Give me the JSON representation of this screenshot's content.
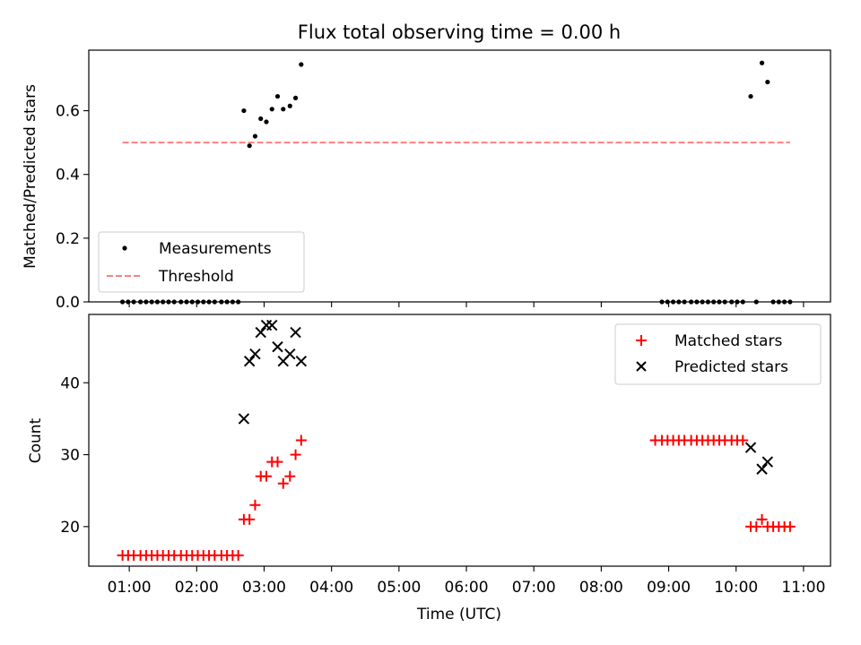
{
  "chart_data": [
    {
      "type": "scatter",
      "title": "Flux total observing time = 0.00 h",
      "ylabel": "Matched/Predicted stars",
      "xlabel": "",
      "xlim": [
        "00:24",
        "11:24"
      ],
      "ylim": [
        0,
        0.79
      ],
      "yticks": [
        "0.0",
        "0.2",
        "0.4",
        "0.6"
      ],
      "legend_position": "lower-left",
      "series": [
        {
          "name": "Measurements",
          "kind": "scatter",
          "marker": "dot",
          "color": "#000000",
          "points": [
            [
              "00:54",
              0
            ],
            [
              "00:59",
              0
            ],
            [
              "01:04",
              0
            ],
            [
              "01:10",
              0
            ],
            [
              "01:15",
              0
            ],
            [
              "01:20",
              0
            ],
            [
              "01:25",
              0
            ],
            [
              "01:30",
              0
            ],
            [
              "01:35",
              0
            ],
            [
              "01:40",
              0
            ],
            [
              "01:46",
              0
            ],
            [
              "01:51",
              0
            ],
            [
              "01:56",
              0
            ],
            [
              "02:01",
              0
            ],
            [
              "02:06",
              0
            ],
            [
              "02:11",
              0
            ],
            [
              "02:16",
              0
            ],
            [
              "02:22",
              0
            ],
            [
              "02:27",
              0
            ],
            [
              "02:32",
              0
            ],
            [
              "02:37",
              0
            ],
            [
              "02:42",
              0.6
            ],
            [
              "02:47",
              0.49
            ],
            [
              "02:52",
              0.52
            ],
            [
              "02:57",
              0.575
            ],
            [
              "03:02",
              0.565
            ],
            [
              "03:07",
              0.605
            ],
            [
              "03:12",
              0.645
            ],
            [
              "03:17",
              0.605
            ],
            [
              "03:23",
              0.615
            ],
            [
              "03:28",
              0.64
            ],
            [
              "03:33",
              0.745
            ],
            [
              "08:54",
              0
            ],
            [
              "08:59",
              0
            ],
            [
              "09:04",
              0
            ],
            [
              "09:09",
              0
            ],
            [
              "09:14",
              0
            ],
            [
              "09:20",
              0
            ],
            [
              "09:25",
              0
            ],
            [
              "09:30",
              0
            ],
            [
              "09:35",
              0
            ],
            [
              "09:40",
              0
            ],
            [
              "09:45",
              0
            ],
            [
              "09:50",
              0
            ],
            [
              "09:56",
              0
            ],
            [
              "10:01",
              0
            ],
            [
              "10:06",
              0
            ],
            [
              "10:13",
              0.645
            ],
            [
              "10:18",
              0
            ],
            [
              "10:23",
              0.75
            ],
            [
              "10:28",
              0.69
            ],
            [
              "10:33",
              0
            ],
            [
              "10:38",
              0
            ],
            [
              "10:43",
              0
            ],
            [
              "10:48",
              0
            ]
          ]
        },
        {
          "name": "Threshold",
          "kind": "line",
          "style": "dashed",
          "color": "#ff7f7f",
          "points": [
            [
              "00:54",
              0.5
            ],
            [
              "10:48",
              0.5
            ]
          ]
        }
      ]
    },
    {
      "type": "scatter",
      "title": "",
      "ylabel": "Count",
      "xlabel": "Time (UTC)",
      "xlim": [
        "00:24",
        "11:24"
      ],
      "ylim": [
        14.5,
        49.5
      ],
      "yticks": [
        "20",
        "30",
        "40"
      ],
      "xticks": [
        "01:00",
        "02:00",
        "03:00",
        "04:00",
        "05:00",
        "06:00",
        "07:00",
        "08:00",
        "09:00",
        "10:00",
        "11:00"
      ],
      "legend_position": "upper-right",
      "series": [
        {
          "name": "Matched stars",
          "marker": "plus",
          "color": "#ff0000",
          "points": [
            [
              "00:54",
              16
            ],
            [
              "00:59",
              16
            ],
            [
              "01:04",
              16
            ],
            [
              "01:10",
              16
            ],
            [
              "01:15",
              16
            ],
            [
              "01:20",
              16
            ],
            [
              "01:25",
              16
            ],
            [
              "01:30",
              16
            ],
            [
              "01:35",
              16
            ],
            [
              "01:40",
              16
            ],
            [
              "01:46",
              16
            ],
            [
              "01:51",
              16
            ],
            [
              "01:56",
              16
            ],
            [
              "02:01",
              16
            ],
            [
              "02:06",
              16
            ],
            [
              "02:11",
              16
            ],
            [
              "02:16",
              16
            ],
            [
              "02:22",
              16
            ],
            [
              "02:27",
              16
            ],
            [
              "02:32",
              16
            ],
            [
              "02:37",
              16
            ],
            [
              "02:42",
              21
            ],
            [
              "02:47",
              21
            ],
            [
              "02:52",
              23
            ],
            [
              "02:57",
              27
            ],
            [
              "03:02",
              27
            ],
            [
              "03:07",
              29
            ],
            [
              "03:12",
              29
            ],
            [
              "03:17",
              26
            ],
            [
              "03:23",
              27
            ],
            [
              "03:28",
              30
            ],
            [
              "03:33",
              32
            ],
            [
              "08:48",
              32
            ],
            [
              "08:54",
              32
            ],
            [
              "08:59",
              32
            ],
            [
              "09:04",
              32
            ],
            [
              "09:09",
              32
            ],
            [
              "09:14",
              32
            ],
            [
              "09:20",
              32
            ],
            [
              "09:25",
              32
            ],
            [
              "09:30",
              32
            ],
            [
              "09:35",
              32
            ],
            [
              "09:40",
              32
            ],
            [
              "09:45",
              32
            ],
            [
              "09:50",
              32
            ],
            [
              "09:56",
              32
            ],
            [
              "10:01",
              32
            ],
            [
              "10:06",
              32
            ],
            [
              "10:13",
              20
            ],
            [
              "10:18",
              20
            ],
            [
              "10:23",
              21
            ],
            [
              "10:28",
              20
            ],
            [
              "10:33",
              20
            ],
            [
              "10:38",
              20
            ],
            [
              "10:43",
              20
            ],
            [
              "10:48",
              20
            ]
          ]
        },
        {
          "name": "Predicted stars",
          "marker": "x",
          "color": "#000000",
          "points": [
            [
              "02:42",
              35
            ],
            [
              "02:47",
              43
            ],
            [
              "02:52",
              44
            ],
            [
              "02:57",
              47
            ],
            [
              "03:02",
              48
            ],
            [
              "03:07",
              48
            ],
            [
              "03:12",
              45
            ],
            [
              "03:17",
              43
            ],
            [
              "03:23",
              44
            ],
            [
              "03:28",
              47
            ],
            [
              "03:33",
              43
            ],
            [
              "10:13",
              31
            ],
            [
              "10:23",
              28
            ],
            [
              "10:28",
              29
            ]
          ]
        }
      ]
    }
  ]
}
